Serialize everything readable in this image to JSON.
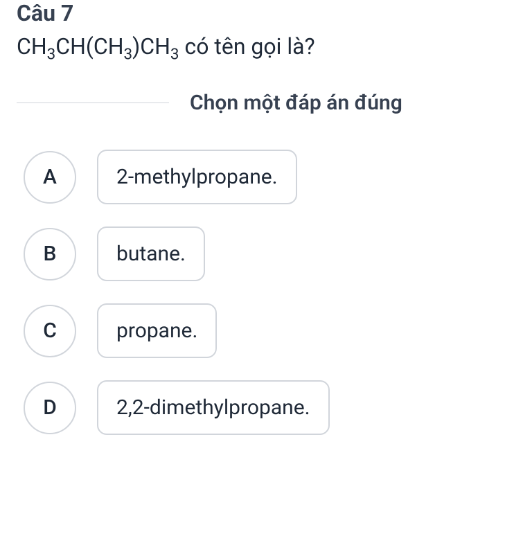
{
  "title_fontsize": 32,
  "body_fontsize": 30,
  "text_color": "#1f2937",
  "border_color": "#d1d5db",
  "background_color": "#ffffff",
  "question": {
    "number_label": "Câu 7",
    "formula_html": "CH<sub>3</sub>CH(CH<sub>3</sub>)CH<sub>3</sub> có tên gọi là?",
    "instruction": "Chọn một đáp án đúng"
  },
  "options": [
    {
      "letter": "A",
      "text": "2-methylpropane."
    },
    {
      "letter": "B",
      "text": "butane."
    },
    {
      "letter": "C",
      "text": "propane."
    },
    {
      "letter": "D",
      "text": "2,2-dimethylpropane."
    }
  ]
}
